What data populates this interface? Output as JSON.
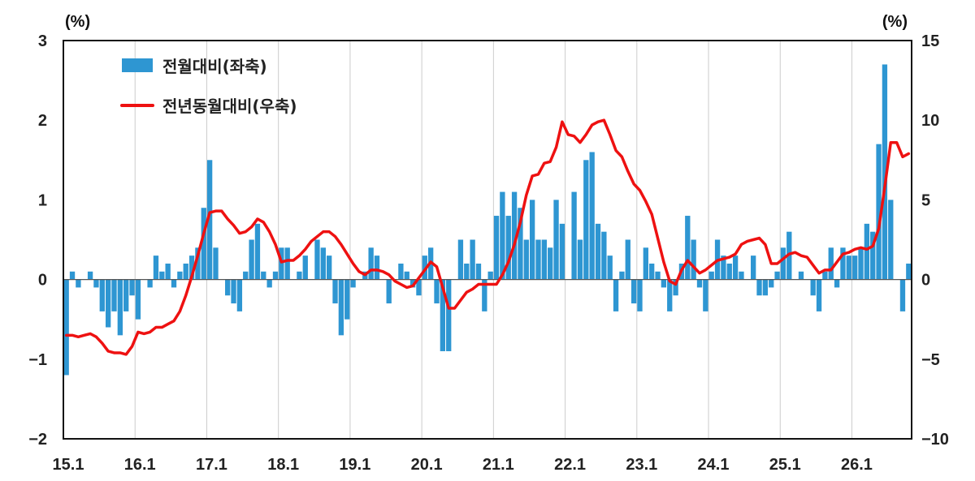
{
  "chart_data": {
    "type": "bar+line",
    "left_axis": {
      "unit": "(%)",
      "ylim": [
        -2,
        3
      ],
      "ticks": [
        -2,
        -1,
        0,
        1,
        2,
        3
      ]
    },
    "right_axis": {
      "unit": "(%)",
      "ylim": [
        -10,
        15
      ],
      "ticks": [
        -10,
        -5,
        0,
        5,
        10,
        15
      ]
    },
    "x_ticks": [
      "15.1",
      "16.1",
      "17.1",
      "18.1",
      "19.1",
      "20.1",
      "21.1",
      "22.1",
      "23.1",
      "24.1",
      "25.1",
      "26.1"
    ],
    "grid": "vertical",
    "legend": "top-left",
    "colors": {
      "bar": "#2e96d2",
      "line": "#ee1111"
    },
    "series": [
      {
        "name": "전월대비(좌축)",
        "axis": "left",
        "type": "bar",
        "values": [
          -1.2,
          0.1,
          -0.1,
          0,
          0.1,
          -0.1,
          -0.4,
          -0.6,
          -0.4,
          -0.7,
          -0.4,
          -0.2,
          -0.5,
          0,
          -0.1,
          0.3,
          0.1,
          0.2,
          -0.1,
          0.1,
          0.2,
          0.3,
          0.4,
          0.9,
          1.5,
          0.4,
          0,
          -0.2,
          -0.3,
          -0.4,
          0.1,
          0.5,
          0.7,
          0.1,
          -0.1,
          0.1,
          0.4,
          0.4,
          0,
          0.1,
          0.3,
          0,
          0.5,
          0.4,
          0.3,
          -0.3,
          -0.7,
          -0.5,
          -0.1,
          0,
          0.1,
          0.4,
          0.3,
          0,
          -0.3,
          0,
          0.2,
          0.1,
          -0.1,
          -0.2,
          0.3,
          0.4,
          -0.3,
          -0.9,
          -0.9,
          0,
          0.5,
          0.2,
          0.5,
          0.2,
          -0.4,
          0.1,
          0.8,
          1.1,
          0.8,
          1.1,
          0.9,
          0.5,
          1.0,
          0.5,
          0.5,
          0.4,
          1.0,
          0.7,
          0,
          1.1,
          0.5,
          1.5,
          1.6,
          0.7,
          0.6,
          0.3,
          -0.4,
          0.1,
          0.5,
          -0.3,
          -0.4,
          0.4,
          0.2,
          0.1,
          -0.1,
          -0.4,
          -0.2,
          0.2,
          0.8,
          0.5,
          -0.1,
          -0.4,
          0.1,
          0.5,
          0.3,
          0.2,
          0.3,
          0.1,
          0,
          0.3,
          -0.2,
          -0.2,
          -0.1,
          0.1,
          0.4,
          0.6,
          0,
          0.1,
          0,
          -0.2,
          -0.4,
          0.1,
          0.4,
          -0.1,
          0.4,
          0.3,
          0.3,
          0.4,
          0.7,
          0.6,
          1.7,
          2.7,
          1.0,
          0,
          -0.4,
          0.2
        ]
      },
      {
        "name": "전년동월대비(우축)",
        "axis": "right",
        "type": "line",
        "values": [
          -3.5,
          -3.5,
          -3.6,
          -3.5,
          -3.4,
          -3.6,
          -4.0,
          -4.5,
          -4.6,
          -4.6,
          -4.7,
          -4.2,
          -3.3,
          -3.4,
          -3.3,
          -3.0,
          -3.0,
          -2.8,
          -2.6,
          -2.0,
          -1.0,
          0.2,
          1.5,
          2.9,
          4.2,
          4.3,
          4.3,
          3.8,
          3.4,
          2.9,
          3.0,
          3.3,
          3.8,
          3.6,
          3.0,
          2.2,
          1.1,
          1.2,
          1.2,
          1.5,
          1.9,
          2.4,
          2.7,
          3.0,
          3.0,
          2.7,
          2.2,
          1.6,
          1.0,
          0.5,
          0.3,
          0.6,
          0.6,
          0.5,
          0.3,
          -0.1,
          -0.3,
          -0.5,
          -0.4,
          0.1,
          0.6,
          1.1,
          0.8,
          -0.5,
          -1.8,
          -1.8,
          -1.3,
          -0.8,
          -0.6,
          -0.3,
          -0.3,
          -0.3,
          -0.3,
          0.3,
          1.1,
          2.2,
          3.6,
          5.3,
          6.5,
          6.6,
          7.3,
          7.4,
          8.3,
          9.9,
          9.1,
          9.0,
          8.6,
          9.1,
          9.7,
          9.9,
          10.0,
          9.1,
          8.1,
          7.7,
          6.8,
          6.0,
          5.6,
          4.9,
          4.1,
          2.6,
          1.1,
          -0.1,
          -0.3,
          0.6,
          1.2,
          0.8,
          0.4,
          0.6,
          0.9,
          1.2,
          1.3,
          1.4,
          1.6,
          2.2,
          2.4,
          2.5,
          2.6,
          2.2,
          1.0,
          1.0,
          1.3,
          1.6,
          1.7,
          1.5,
          1.4,
          0.9,
          0.4,
          0.6,
          0.6,
          1.1,
          1.6,
          1.7,
          1.9,
          2.0,
          1.9,
          2.1,
          3.2,
          5.8,
          8.6,
          8.6,
          7.7,
          7.9
        ]
      }
    ]
  }
}
